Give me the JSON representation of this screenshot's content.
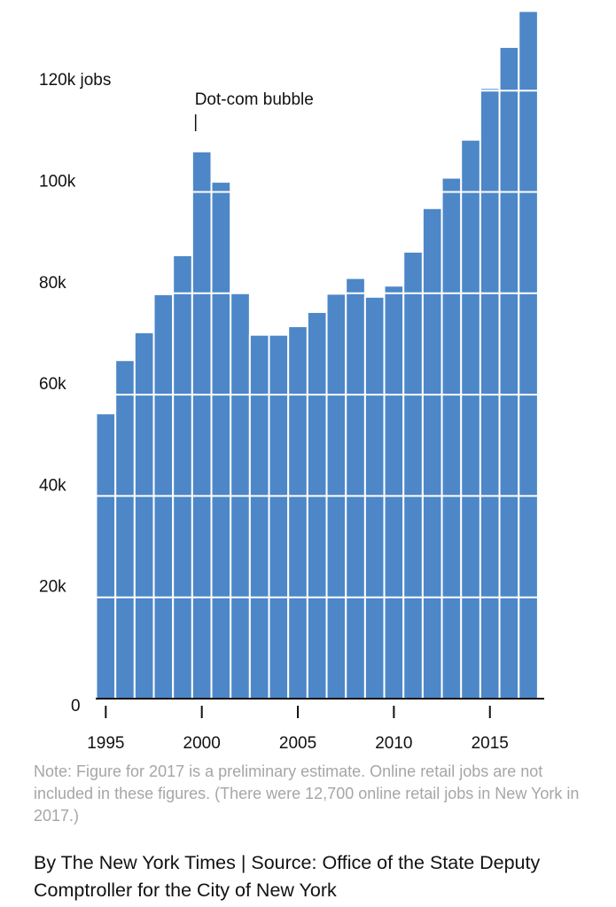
{
  "chart_data": {
    "type": "bar",
    "x": [
      1995,
      1996,
      1997,
      1998,
      1999,
      2000,
      2001,
      2002,
      2003,
      2004,
      2005,
      2006,
      2007,
      2008,
      2009,
      2010,
      2011,
      2012,
      2013,
      2014,
      2015,
      2016,
      2017
    ],
    "values": [
      56300,
      66800,
      72300,
      79800,
      87500,
      108000,
      102000,
      80300,
      71800,
      71800,
      73500,
      76300,
      79900,
      83000,
      79300,
      81500,
      88200,
      96800,
      102800,
      110300,
      120500,
      128600,
      135700
    ],
    "y_tick_values": [
      0,
      20000,
      40000,
      60000,
      80000,
      100000,
      120000
    ],
    "y_tick_labels": [
      "0",
      "20k",
      "40k",
      "60k",
      "80k",
      "100k",
      "120k jobs"
    ],
    "x_tick_values": [
      1995,
      2000,
      2005,
      2010,
      2015
    ],
    "x_tick_labels": [
      "1995",
      "2000",
      "2005",
      "2010",
      "2015"
    ],
    "ylim": [
      0,
      135700
    ],
    "grid": "horizontal white lines over bars",
    "bar_color": "#4d87c7",
    "annotation": {
      "text": "Dot-com bubble",
      "year": 2000
    },
    "title": "",
    "xlabel": "",
    "ylabel": ""
  },
  "note": "Note: Figure for 2017 is a preliminary estimate. Online retail jobs are not included in these figures. (There were 12,700 online retail jobs in New York in 2017.)",
  "credit": "By The New York Times | Source: Office of the State Deputy Comptroller for the City of New York"
}
